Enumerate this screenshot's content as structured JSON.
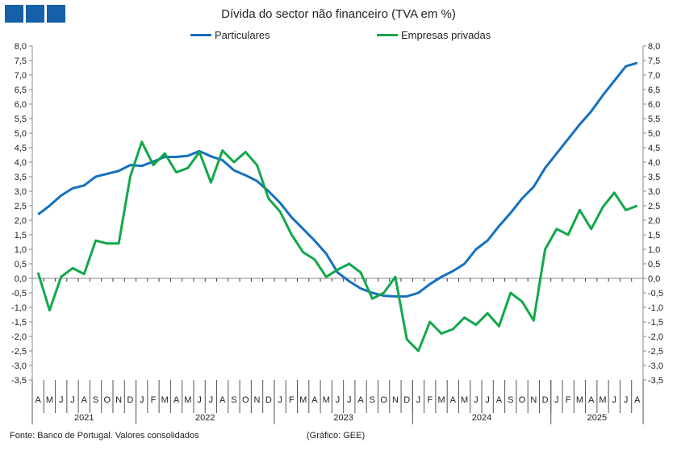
{
  "colors": {
    "particulares": "#1570c0",
    "empresas": "#12a84a",
    "logo": "#1560a8"
  },
  "footer": {
    "source": "Fonte: Banco de Portugal. Valores consolidados",
    "credit": "(Gráfico: GEE)"
  },
  "chart_data": {
    "type": "line",
    "title": "Dívida do sector não financeiro (TVA em %)",
    "xlabel": "",
    "ylabel": "",
    "ylim": [
      -3.5,
      8.0
    ],
    "ytick_step": 0.5,
    "grid": false,
    "legend": "top-center",
    "years": [
      {
        "label": "2021",
        "months": 9
      },
      {
        "label": "2022",
        "months": 12
      },
      {
        "label": "2023",
        "months": 12
      },
      {
        "label": "2024",
        "months": 12
      },
      {
        "label": "2025",
        "months": 8
      }
    ],
    "categories": [
      "A",
      "M",
      "J",
      "J",
      "A",
      "S",
      "O",
      "N",
      "D",
      "J",
      "F",
      "M",
      "A",
      "M",
      "J",
      "J",
      "A",
      "S",
      "O",
      "N",
      "D",
      "J",
      "F",
      "M",
      "A",
      "M",
      "J",
      "J",
      "A",
      "S",
      "O",
      "N",
      "D",
      "J",
      "F",
      "M",
      "A",
      "M",
      "J",
      "J",
      "A",
      "S",
      "O",
      "N",
      "D",
      "J",
      "F",
      "M",
      "A",
      "M",
      "J",
      "J",
      "A"
    ],
    "series": [
      {
        "name": "Particulares",
        "values": [
          2.2,
          2.5,
          2.85,
          3.1,
          3.2,
          3.5,
          3.6,
          3.7,
          3.9,
          3.87,
          4.02,
          4.18,
          4.18,
          4.22,
          4.38,
          4.2,
          4.07,
          3.72,
          3.55,
          3.35,
          3.0,
          2.6,
          2.1,
          1.7,
          1.3,
          0.85,
          0.2,
          -0.1,
          -0.35,
          -0.5,
          -0.6,
          -0.62,
          -0.62,
          -0.5,
          -0.2,
          0.05,
          0.25,
          0.5,
          1.0,
          1.3,
          1.8,
          2.25,
          2.75,
          3.15,
          3.8,
          4.3,
          4.8,
          5.3,
          5.75,
          6.3,
          6.8,
          7.3,
          7.42
        ]
      },
      {
        "name": "Empresas privadas",
        "values": [
          0.2,
          -1.1,
          0.05,
          0.35,
          0.15,
          1.3,
          1.2,
          1.2,
          3.5,
          4.7,
          3.9,
          4.3,
          3.65,
          3.8,
          4.35,
          3.3,
          4.4,
          4.0,
          4.35,
          3.9,
          2.75,
          2.3,
          1.5,
          0.9,
          0.65,
          0.05,
          0.3,
          0.5,
          0.2,
          -0.7,
          -0.5,
          0.05,
          -2.1,
          -2.5,
          -1.5,
          -1.9,
          -1.75,
          -1.35,
          -1.6,
          -1.2,
          -1.65,
          -0.5,
          -0.8,
          -1.45,
          1.0,
          1.7,
          1.5,
          2.35,
          1.7,
          2.45,
          2.95,
          2.35,
          2.5
        ]
      }
    ]
  }
}
